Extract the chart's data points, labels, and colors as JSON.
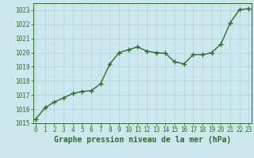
{
  "x": [
    0,
    1,
    2,
    3,
    4,
    5,
    6,
    7,
    8,
    9,
    10,
    11,
    12,
    13,
    14,
    15,
    16,
    17,
    18,
    19,
    20,
    21,
    22,
    23
  ],
  "y": [
    1015.3,
    1016.1,
    1016.5,
    1016.8,
    1017.1,
    1017.25,
    1017.3,
    1017.8,
    1019.2,
    1020.0,
    1020.2,
    1020.4,
    1020.1,
    1020.0,
    1019.95,
    1019.35,
    1019.2,
    1019.85,
    1019.85,
    1020.0,
    1020.6,
    1022.1,
    1023.05,
    1023.1
  ],
  "line_color": "#2d6a2d",
  "marker": "+",
  "marker_size": 4,
  "linewidth": 1.0,
  "background_color": "#cce8ee",
  "grid_color": "#b0d8e0",
  "ylim": [
    1015,
    1023.5
  ],
  "yticks": [
    1015,
    1016,
    1017,
    1018,
    1019,
    1020,
    1021,
    1022,
    1023
  ],
  "xticks": [
    0,
    1,
    2,
    3,
    4,
    5,
    6,
    7,
    8,
    9,
    10,
    11,
    12,
    13,
    14,
    15,
    16,
    17,
    18,
    19,
    20,
    21,
    22,
    23
  ],
  "xlabel": "Graphe pression niveau de la mer (hPa)",
  "xlabel_fontsize": 7,
  "tick_fontsize": 5.5,
  "tick_color": "#2d6a2d",
  "label_color": "#2d6a2d",
  "axis_color": "#2d6a2d",
  "xlim_left": -0.3,
  "xlim_right": 23.3
}
